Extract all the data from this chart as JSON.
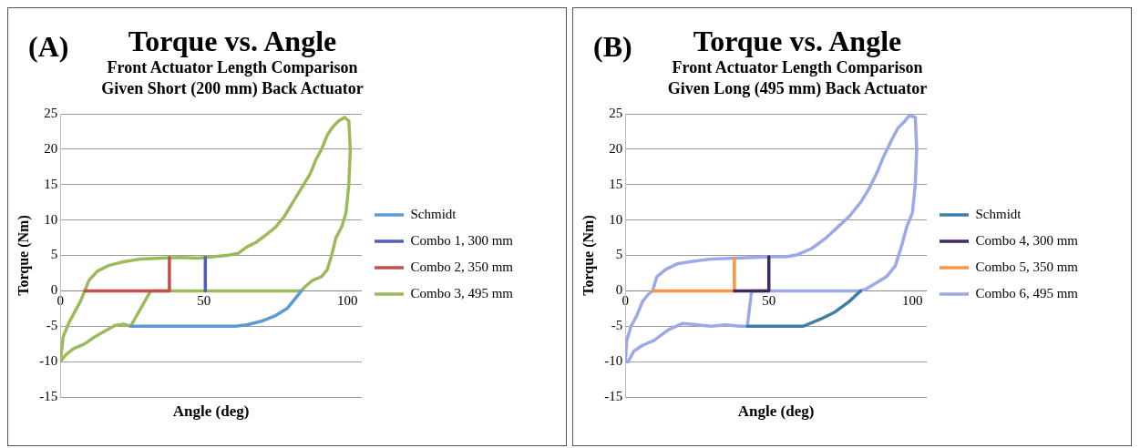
{
  "chart_data": [
    {
      "type": "line",
      "title": "Torque vs. Angle",
      "subtitle": "Front Actuator Length Comparison\nGiven Short (200 mm) Back Actuator",
      "annotations": [
        "(A)"
      ],
      "xlabel": "Angle (deg)",
      "ylabel": "Torque (Nm)",
      "xlim": [
        0,
        105
      ],
      "xticks": [
        0,
        50,
        100
      ],
      "ylim": [
        -15,
        25
      ],
      "yticks": [
        -15,
        -10,
        -5,
        0,
        5,
        10,
        15,
        20,
        25
      ],
      "grid": "y",
      "legend": "right",
      "marker": "none",
      "series": [
        {
          "name": "Schmidt",
          "color": "#5b9bd5",
          "x": [
            84,
            82,
            79,
            75,
            70,
            65,
            61,
            50,
            40,
            30,
            24.5
          ],
          "values": [
            0,
            -1,
            -2.5,
            -3.5,
            -4.3,
            -4.8,
            -5,
            -5,
            -5,
            -5,
            -5
          ]
        },
        {
          "name": "Combo 1, 300 mm",
          "color": "#4f5fb8",
          "x": [
            50.5,
            50.5
          ],
          "values": [
            0,
            4.7
          ]
        },
        {
          "name": "Combo 2, 350 mm",
          "color": "#c0504d",
          "x": [
            8.5,
            38,
            38
          ],
          "values": [
            0,
            0,
            4.7
          ]
        },
        {
          "name": "Combo 3, 495 mm",
          "color": "#9bbb59",
          "x": [
            0,
            1,
            3,
            5,
            7,
            8.5,
            10,
            13,
            17,
            22,
            28,
            35,
            42,
            48,
            53,
            58,
            62,
            65,
            68,
            72,
            75,
            78,
            81,
            84,
            87,
            89,
            91,
            93,
            95,
            97,
            99,
            100.5,
            101,
            null,
            101,
            100.5,
            99.5,
            98,
            96,
            94.5,
            93,
            91,
            88,
            85,
            84,
            31.5,
            24.5,
            22,
            19,
            15,
            12,
            8.5,
            4.5,
            2,
            0
          ],
          "values": [
            -10,
            -6.5,
            -4.5,
            -3,
            -1.5,
            0,
            1.5,
            2.8,
            3.6,
            4.1,
            4.5,
            4.6,
            4.7,
            4.6,
            4.8,
            5,
            5.3,
            6.2,
            6.8,
            8,
            9,
            10.5,
            12.5,
            14.5,
            16.5,
            18.5,
            20,
            22,
            23.2,
            24,
            24.5,
            24,
            20,
            null,
            20,
            15,
            11,
            9,
            7.5,
            5,
            3,
            2,
            1.5,
            0.5,
            0,
            0,
            -5,
            -4.7,
            -4.9,
            -5.8,
            -6.5,
            -7.5,
            -8.2,
            -9,
            -10
          ]
        }
      ]
    },
    {
      "type": "line",
      "title": "Torque vs. Angle",
      "subtitle": "Front Actuator Length Comparison\nGiven Long (495 mm) Back Actuator",
      "annotations": [
        "(B)"
      ],
      "xlabel": "Angle (deg)",
      "ylabel": "Torque (Nm)",
      "xlim": [
        0,
        105
      ],
      "xticks": [
        0,
        50,
        100
      ],
      "ylim": [
        -15,
        25
      ],
      "yticks": [
        -15,
        -10,
        -5,
        0,
        5,
        10,
        15,
        20,
        25
      ],
      "grid": "y",
      "legend": "right",
      "marker": "none",
      "series": [
        {
          "name": "Schmidt",
          "color": "#3b7fa8",
          "x": [
            82,
            78,
            73,
            68,
            62,
            59,
            50,
            42.5
          ],
          "values": [
            0,
            -1.5,
            -3,
            -4,
            -5,
            -5,
            -5,
            -5
          ]
        },
        {
          "name": "Combo 4, 300 mm",
          "color": "#3f2a5e",
          "x": [
            38,
            50,
            50
          ],
          "values": [
            0,
            0,
            4.8
          ]
        },
        {
          "name": "Combo 5, 350 mm",
          "color": "#f79646",
          "x": [
            9.5,
            38,
            38
          ],
          "values": [
            0,
            0,
            4.6
          ]
        },
        {
          "name": "Combo 6, 495 mm",
          "color": "#9ca8e8",
          "x": [
            0,
            0.5,
            2,
            4,
            6,
            8,
            9.5,
            11,
            14,
            18,
            24,
            30,
            38,
            45,
            50,
            56,
            60,
            65,
            70,
            74,
            78,
            82,
            85,
            88,
            90,
            93,
            95,
            97,
            99,
            101,
            101.5,
            null,
            101.5,
            101,
            100,
            98,
            96,
            94,
            91,
            87,
            84,
            82,
            44,
            42.5,
            40,
            35,
            30,
            25,
            20,
            15,
            10,
            6,
            3,
            1,
            0.5
          ],
          "values": [
            -10,
            -7,
            -5,
            -3.5,
            -1.5,
            -0.5,
            0,
            2,
            3,
            3.8,
            4.2,
            4.5,
            4.6,
            4.7,
            4.8,
            4.8,
            5.1,
            6,
            7.5,
            9,
            10.5,
            12.5,
            14.5,
            17,
            19,
            21.5,
            23,
            23.8,
            24.8,
            24.5,
            20,
            null,
            20,
            15,
            11,
            9,
            6,
            3.5,
            2,
            1,
            0.3,
            0,
            0,
            -5,
            -5,
            -4.8,
            -5,
            -4.8,
            -4.6,
            -5.5,
            -7,
            -7.7,
            -8.5,
            -10,
            -10
          ]
        }
      ]
    }
  ]
}
